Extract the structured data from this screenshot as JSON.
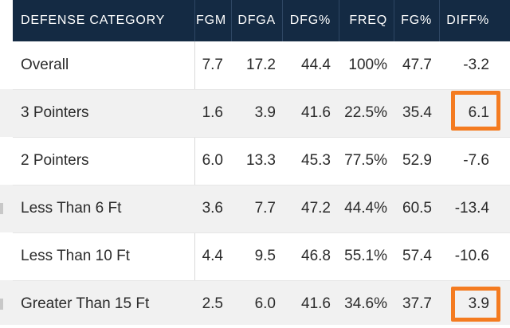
{
  "table": {
    "headers": {
      "category": "DEFENSE CATEGORY",
      "fgm": "FGM",
      "dfga": "DFGA",
      "dfg_pct": "DFG%",
      "freq": "FREQ",
      "fg_pct": "FG%",
      "diff_pct": "DIFF%"
    },
    "rows": [
      {
        "category": "Overall",
        "fgm": "7.7",
        "dfga": "17.2",
        "dfg_pct": "44.4",
        "freq": "100%",
        "fg_pct": "47.7",
        "diff_pct": "-3.2",
        "highlighted": false
      },
      {
        "category": "3 Pointers",
        "fgm": "1.6",
        "dfga": "3.9",
        "dfg_pct": "41.6",
        "freq": "22.5%",
        "fg_pct": "35.4",
        "diff_pct": "6.1",
        "highlighted": true
      },
      {
        "category": "2 Pointers",
        "fgm": "6.0",
        "dfga": "13.3",
        "dfg_pct": "45.3",
        "freq": "77.5%",
        "fg_pct": "52.9",
        "diff_pct": "-7.6",
        "highlighted": false
      },
      {
        "category": "Less Than 6 Ft",
        "fgm": "3.6",
        "dfga": "7.7",
        "dfg_pct": "47.2",
        "freq": "44.4%",
        "fg_pct": "60.5",
        "diff_pct": "-13.4",
        "highlighted": false
      },
      {
        "category": "Less Than 10 Ft",
        "fgm": "4.4",
        "dfga": "9.5",
        "dfg_pct": "46.8",
        "freq": "55.1%",
        "fg_pct": "57.4",
        "diff_pct": "-10.6",
        "highlighted": false
      },
      {
        "category": "Greater Than 15 Ft",
        "fgm": "2.5",
        "dfga": "6.0",
        "dfg_pct": "41.6",
        "freq": "34.6%",
        "fg_pct": "37.7",
        "diff_pct": "3.9",
        "highlighted": true
      }
    ]
  },
  "colors": {
    "header_bg": "#142a43",
    "header_text": "#ffffff",
    "highlight_box": "#f47b20",
    "alt_row_bg": "#f1f1f1"
  }
}
